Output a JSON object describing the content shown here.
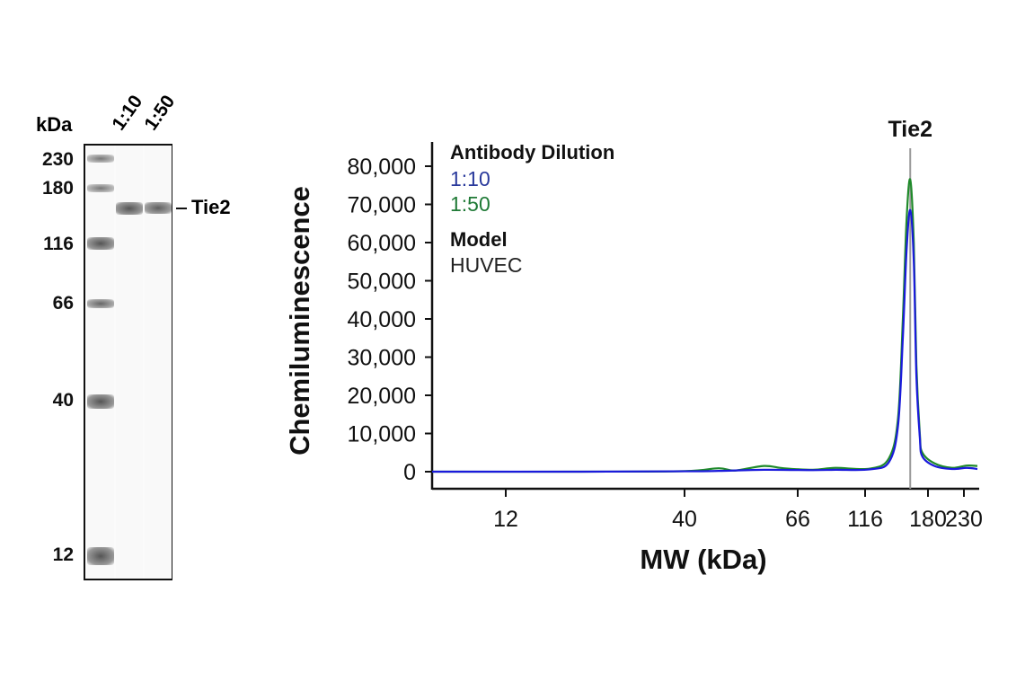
{
  "gel": {
    "unit_label": "kDa",
    "lane_labels": [
      "1:10",
      "1:50"
    ],
    "markers": [
      "230",
      "180",
      "116",
      "66",
      "40",
      "12"
    ],
    "band_label": "Tie2"
  },
  "chart_data": {
    "type": "line",
    "title": "",
    "xlabel": "MW (kDa)",
    "ylabel": "Chemiluminescence",
    "x_scale": "log",
    "xlim": [
      7.3,
      245
    ],
    "ylim": [
      0,
      80000
    ],
    "x_ticks": [
      12,
      40,
      66,
      116,
      180,
      230
    ],
    "x_tick_labels": [
      "12",
      "40",
      "66",
      "116",
      "180",
      "230"
    ],
    "y_ticks": [
      0,
      10000,
      20000,
      30000,
      40000,
      50000,
      60000,
      70000,
      80000
    ],
    "y_tick_labels": [
      "0",
      "10,000",
      "20,000",
      "30,000",
      "40,000",
      "50,000",
      "60,000",
      "70,000",
      "80,000"
    ],
    "grid": false,
    "annotation": {
      "label": "Tie2",
      "x": 159
    },
    "legend": {
      "placement": "top-left",
      "title": "Antibody Dilution",
      "entries": [
        "1:10",
        "1:50"
      ],
      "model_title": "Model",
      "model_value": "HUVEC"
    },
    "series": [
      {
        "name": "1:10",
        "color": "#1a1adc",
        "points": [
          [
            7.3,
            0
          ],
          [
            20,
            0
          ],
          [
            40,
            100
          ],
          [
            46.5,
            200
          ],
          [
            56.8,
            500
          ],
          [
            75,
            400
          ],
          [
            90.5,
            500
          ],
          [
            120,
            600
          ],
          [
            137,
            2500
          ],
          [
            146,
            12000
          ],
          [
            151,
            35000
          ],
          [
            155,
            58000
          ],
          [
            159,
            68500
          ],
          [
            163,
            55000
          ],
          [
            166,
            25000
          ],
          [
            170,
            9000
          ],
          [
            173,
            4000
          ],
          [
            188,
            1500
          ],
          [
            212,
            700
          ],
          [
            233,
            1000
          ],
          [
            245,
            700
          ]
        ]
      },
      {
        "name": "1:50",
        "color": "#1f8a2a",
        "points": [
          [
            7.3,
            0
          ],
          [
            20,
            0
          ],
          [
            40,
            150
          ],
          [
            46.5,
            900
          ],
          [
            50,
            300
          ],
          [
            56.8,
            1500
          ],
          [
            62,
            900
          ],
          [
            75,
            500
          ],
          [
            90.5,
            1000
          ],
          [
            120,
            800
          ],
          [
            137,
            3500
          ],
          [
            146,
            14000
          ],
          [
            151,
            40000
          ],
          [
            155,
            66000
          ],
          [
            159,
            76500
          ],
          [
            163,
            60000
          ],
          [
            166,
            28000
          ],
          [
            170,
            10000
          ],
          [
            173,
            5000
          ],
          [
            188,
            2200
          ],
          [
            212,
            1000
          ],
          [
            233,
            1600
          ],
          [
            245,
            1500
          ]
        ]
      }
    ]
  }
}
